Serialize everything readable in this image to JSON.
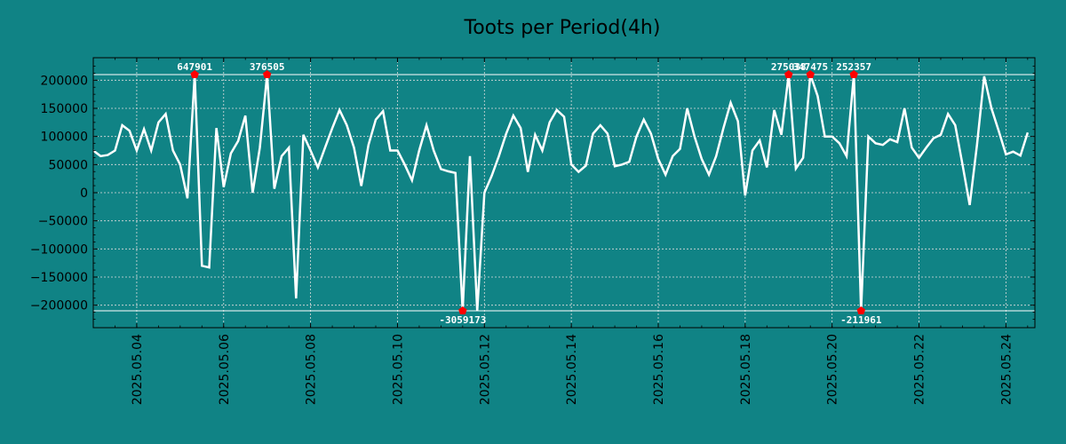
{
  "chart_data": {
    "type": "line",
    "title": "Toots per Period(4h)",
    "xlabel": "",
    "ylabel": "",
    "grid": true,
    "colors": {
      "background": "#108385",
      "line": "#ffffff",
      "marker": "#ff0000",
      "grid": "#dddddd",
      "text": "#000000",
      "annotation_text": "#ffffff"
    },
    "xlim": [
      "2025-05-03",
      "2025-05-24.667"
    ],
    "ylim": [
      -240000,
      240000
    ],
    "clip_range": [
      -210000,
      210000
    ],
    "x_ticks": [
      "2025.05.04",
      "2025.05.06",
      "2025.05.08",
      "2025.05.10",
      "2025.05.12",
      "2025.05.14",
      "2025.05.16",
      "2025.05.18",
      "2025.05.20",
      "2025.05.22",
      "2025.05.24"
    ],
    "y_ticks": [
      {
        "value": 200000,
        "label": "200000"
      },
      {
        "value": 150000,
        "label": "150000"
      },
      {
        "value": 100000,
        "label": "100000"
      },
      {
        "value": 50000,
        "label": "50000"
      },
      {
        "value": 0,
        "label": "0"
      },
      {
        "value": -50000,
        "label": "−50000"
      },
      {
        "value": -100000,
        "label": "−100000"
      },
      {
        "value": -150000,
        "label": "−150000"
      },
      {
        "value": -200000,
        "label": "−200000"
      }
    ],
    "series": [
      {
        "name": "Toots",
        "x_start": "2025-05-03",
        "x_step_days": 0.16667,
        "values": [
          75000,
          65000,
          67000,
          75000,
          120000,
          110000,
          75000,
          113000,
          75000,
          125000,
          140000,
          75000,
          50000,
          -10000,
          210000,
          -130000,
          -133000,
          115000,
          10000,
          70000,
          92000,
          137000,
          0,
          80000,
          210000,
          7000,
          65000,
          80000,
          -188000,
          103000,
          75000,
          45000,
          80000,
          115000,
          147000,
          120000,
          80000,
          12000,
          85000,
          130000,
          145000,
          75000,
          75000,
          50000,
          22000,
          75000,
          120000,
          75000,
          42000,
          38000,
          35000,
          -210000,
          65000,
          -210000,
          0,
          30000,
          65000,
          105000,
          137000,
          115000,
          37000,
          103000,
          75000,
          125000,
          147000,
          135000,
          50000,
          37000,
          48000,
          105000,
          120000,
          105000,
          47000,
          50000,
          55000,
          100000,
          130000,
          105000,
          60000,
          32000,
          65000,
          78000,
          150000,
          100000,
          60000,
          32000,
          65000,
          115000,
          160000,
          127000,
          -5000,
          75000,
          93000,
          45000,
          147000,
          103000,
          210000,
          43000,
          62000,
          210000,
          172000,
          100000,
          100000,
          88000,
          65000,
          210000,
          -210000,
          100000,
          88000,
          85000,
          95000,
          90000,
          150000,
          80000,
          62000,
          80000,
          97000,
          103000,
          140000,
          120000,
          50000,
          -22000,
          85000,
          207000,
          150000,
          110000,
          68000,
          73000,
          66000,
          107000
        ]
      }
    ],
    "annotations": [
      {
        "index": 14,
        "label": "647901",
        "side": "top"
      },
      {
        "index": 24,
        "label": "376505",
        "side": "top"
      },
      {
        "index": 51,
        "label": "-3059173",
        "side": "bottom"
      },
      {
        "index": 96,
        "label": "275038",
        "side": "top"
      },
      {
        "index": 99,
        "label": "347475",
        "side": "top"
      },
      {
        "index": 105,
        "label": "252357",
        "side": "top"
      },
      {
        "index": 106,
        "label": "-211961",
        "side": "bottom"
      }
    ]
  }
}
